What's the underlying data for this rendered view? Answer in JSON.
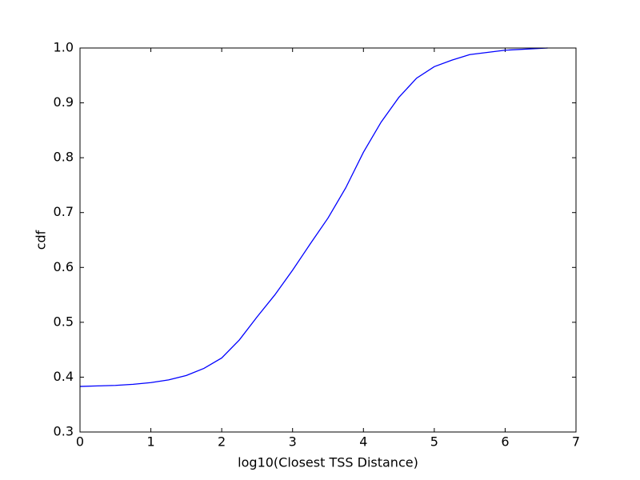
{
  "chart_data": {
    "type": "line",
    "xlabel": "log10(Closest TSS Distance)",
    "ylabel": "cdf",
    "x": [
      0,
      0.25,
      0.5,
      0.75,
      1.0,
      1.25,
      1.5,
      1.75,
      2.0,
      2.25,
      2.5,
      2.75,
      3.0,
      3.25,
      3.5,
      3.75,
      4.0,
      4.25,
      4.5,
      4.75,
      5.0,
      5.25,
      5.5,
      6.0,
      6.6
    ],
    "series": [
      {
        "color": "#0000ff",
        "values": [
          0.383,
          0.384,
          0.385,
          0.387,
          0.39,
          0.395,
          0.403,
          0.416,
          0.435,
          0.468,
          0.51,
          0.55,
          0.595,
          0.643,
          0.69,
          0.745,
          0.81,
          0.865,
          0.91,
          0.945,
          0.966,
          0.978,
          0.988,
          0.996,
          1.0
        ]
      }
    ],
    "xlim": [
      0,
      7
    ],
    "xticks": [
      0,
      1,
      2,
      3,
      4,
      5,
      6,
      7
    ],
    "ylim": [
      0.3,
      1.0
    ],
    "yticks": [
      0.3,
      0.4,
      0.5,
      0.6,
      0.7,
      0.8,
      0.9,
      {
        "value": 1.0,
        "label": "1.0"
      }
    ],
    "grid": false
  }
}
